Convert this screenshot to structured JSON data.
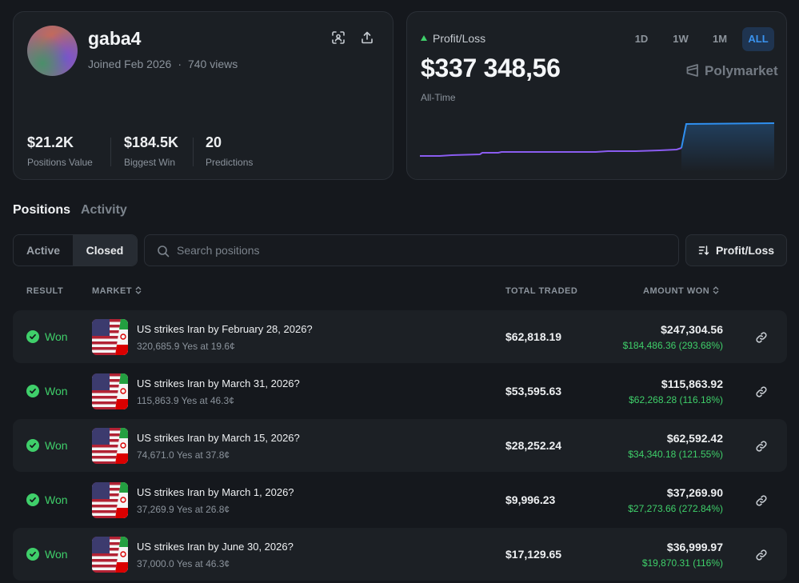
{
  "profile": {
    "username": "gaba4",
    "joined": "Joined Feb 2026",
    "dot": "·",
    "views": "740 views",
    "stats": [
      {
        "value": "$21.2K",
        "label": "Positions Value"
      },
      {
        "value": "$184.5K",
        "label": "Biggest Win"
      },
      {
        "value": "20",
        "label": "Predictions"
      }
    ]
  },
  "pnl": {
    "label": "Profit/Loss",
    "value": "$337 348,56",
    "period_label": "All-Time",
    "ranges": [
      "1D",
      "1W",
      "1M",
      "ALL"
    ],
    "active_range": "ALL",
    "brand": "Polymarket",
    "colors": {
      "line_before": "#8a5cf0",
      "line_after": "#2f8fef",
      "up": "#3fcf6a"
    }
  },
  "tabs": {
    "positions": "Positions",
    "activity": "Activity"
  },
  "filter": {
    "active": "Active",
    "closed": "Closed"
  },
  "search": {
    "placeholder": "Search positions"
  },
  "sort": {
    "label": "Profit/Loss"
  },
  "table": {
    "headers": {
      "result": "RESULT",
      "market": "MARKET",
      "total_traded": "TOTAL TRADED",
      "amount_won": "AMOUNT WON"
    },
    "rows": [
      {
        "result": "Won",
        "title": "US strikes Iran by February 28, 2026?",
        "sub": "320,685.9 Yes at 19.6¢",
        "traded": "$62,818.19",
        "amount": "$247,304.56",
        "gain": "$184,486.36 (293.68%)"
      },
      {
        "result": "Won",
        "title": "US strikes Iran by March 31, 2026?",
        "sub": "115,863.9 Yes at 46.3¢",
        "traded": "$53,595.63",
        "amount": "$115,863.92",
        "gain": "$62,268.28 (116.18%)"
      },
      {
        "result": "Won",
        "title": "US strikes Iran by March 15, 2026?",
        "sub": "74,671.0 Yes at 37.8¢",
        "traded": "$28,252.24",
        "amount": "$62,592.42",
        "gain": "$34,340.18 (121.55%)"
      },
      {
        "result": "Won",
        "title": "US strikes Iran by March 1, 2026?",
        "sub": "37,269.9 Yes at 26.8¢",
        "traded": "$9,996.23",
        "amount": "$37,269.90",
        "gain": "$27,273.66 (272.84%)"
      },
      {
        "result": "Won",
        "title": "US strikes Iran by June 30, 2026?",
        "sub": "37,000.0 Yes at 46.3¢",
        "traded": "$17,129.65",
        "amount": "$36,999.97",
        "gain": "$19,870.31 (116%)"
      }
    ]
  }
}
